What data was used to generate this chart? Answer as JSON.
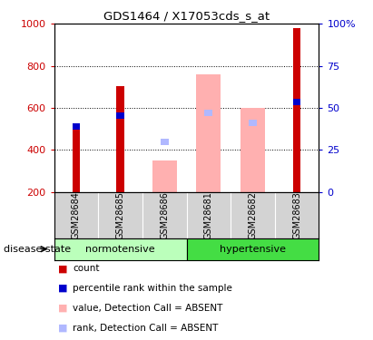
{
  "title": "GDS1464 / X17053cds_s_at",
  "samples": [
    "GSM28684",
    "GSM28685",
    "GSM28686",
    "GSM28681",
    "GSM28682",
    "GSM28683"
  ],
  "count_values": [
    520,
    705,
    null,
    null,
    null,
    980
  ],
  "percentile_values": [
    510,
    565,
    null,
    null,
    null,
    630
  ],
  "absent_value_values": [
    null,
    null,
    350,
    760,
    600,
    null
  ],
  "absent_rank_values": [
    null,
    null,
    440,
    575,
    530,
    null
  ],
  "ylim": [
    200,
    1000
  ],
  "y2lim": [
    0,
    100
  ],
  "yticks": [
    200,
    400,
    600,
    800,
    1000
  ],
  "y2ticks": [
    0,
    25,
    50,
    75,
    100
  ],
  "y2tick_labels": [
    "0",
    "25",
    "50",
    "75",
    "100%"
  ],
  "count_color": "#cc0000",
  "percentile_color": "#0000cc",
  "absent_value_color": "#ffb0b0",
  "absent_rank_color": "#b0b8ff",
  "normotensive_color": "#bbffbb",
  "hypertensive_color": "#44dd44",
  "sample_bg_color": "#d3d3d3",
  "ylabel_color": "#cc0000",
  "y2label_color": "#0000cc"
}
